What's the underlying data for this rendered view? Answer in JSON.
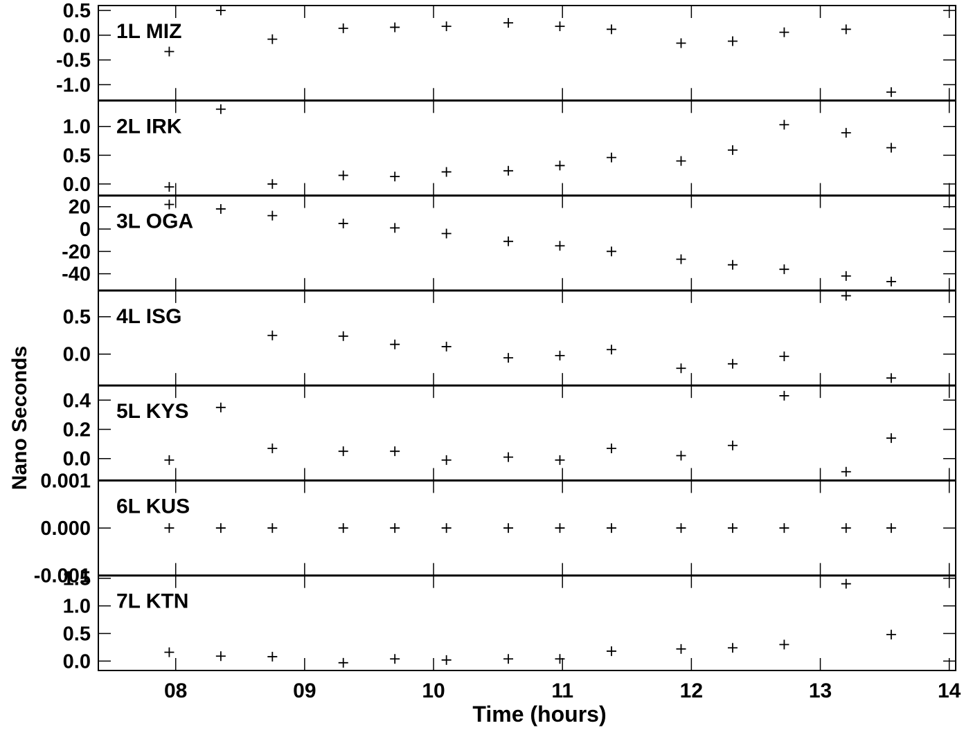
{
  "chart_data": {
    "type": "scatter",
    "xlabel": "Time (hours)",
    "ylabel": "Nano Seconds",
    "xlim": [
      7.4,
      14.05
    ],
    "x_ticks": [
      8,
      9,
      10,
      11,
      12,
      13,
      14
    ],
    "x_tick_labels": [
      "08",
      "09",
      "10",
      "11",
      "12",
      "13",
      "14"
    ],
    "grid": false,
    "panels": [
      {
        "name": "1L MIZ",
        "ylim": [
          -1.32,
          0.6
        ],
        "y_ticks": [
          0.5,
          0.0,
          -0.5,
          -1.0
        ],
        "y_tick_labels": [
          "0.5",
          "0.0",
          "-0.5",
          "-1.0"
        ],
        "x": [
          7.95,
          8.35,
          8.75,
          9.3,
          9.7,
          10.1,
          10.58,
          10.98,
          11.38,
          11.92,
          12.32,
          12.72,
          13.2,
          13.55
        ],
        "y": [
          -0.33,
          0.5,
          -0.08,
          0.14,
          0.16,
          0.18,
          0.25,
          0.18,
          0.12,
          -0.16,
          -0.12,
          0.06,
          0.12,
          -1.15
        ]
      },
      {
        "name": "2L IRK",
        "ylim": [
          -0.2,
          1.45
        ],
        "y_ticks": [
          1.0,
          0.5,
          0.0
        ],
        "y_tick_labels": [
          "1.0",
          "0.5",
          "0.0"
        ],
        "x": [
          7.95,
          8.35,
          8.75,
          9.3,
          9.7,
          10.1,
          10.58,
          10.98,
          11.38,
          11.92,
          12.32,
          12.72,
          13.2,
          13.55
        ],
        "y": [
          -0.05,
          1.3,
          0.0,
          0.15,
          0.13,
          0.21,
          0.23,
          0.32,
          0.46,
          0.4,
          0.59,
          1.03,
          0.89,
          0.63
        ]
      },
      {
        "name": "3L OGA",
        "ylim": [
          -55,
          30
        ],
        "y_ticks": [
          20,
          0,
          -20,
          -40
        ],
        "y_tick_labels": [
          "20",
          "0",
          "-20",
          "-40"
        ],
        "x": [
          7.95,
          8.35,
          8.75,
          9.3,
          9.7,
          10.1,
          10.58,
          10.98,
          11.38,
          11.92,
          12.32,
          12.72,
          13.2,
          13.55
        ],
        "y": [
          22,
          18,
          12,
          5,
          1,
          -4,
          -11,
          -15,
          -20,
          -27,
          -32,
          -36,
          -42,
          -47
        ]
      },
      {
        "name": "4L ISG",
        "ylim": [
          -0.42,
          0.85
        ],
        "y_ticks": [
          0.5,
          0.0
        ],
        "y_tick_labels": [
          "0.5",
          "0.0"
        ],
        "x": [
          8.75,
          9.3,
          9.7,
          10.1,
          10.58,
          10.98,
          11.38,
          11.92,
          12.32,
          12.72,
          13.2,
          13.55
        ],
        "y": [
          0.25,
          0.24,
          0.13,
          0.1,
          -0.05,
          -0.02,
          0.06,
          -0.19,
          -0.13,
          -0.03,
          0.78,
          -0.32
        ]
      },
      {
        "name": "5L KYS",
        "ylim": [
          -0.15,
          0.5
        ],
        "y_ticks": [
          0.4,
          0.2,
          0.0
        ],
        "y_tick_labels": [
          "0.4",
          "0.2",
          "0.0"
        ],
        "x": [
          7.95,
          8.35,
          8.75,
          9.3,
          9.7,
          10.1,
          10.58,
          10.98,
          11.38,
          11.92,
          12.32,
          12.72,
          13.2,
          13.55
        ],
        "y": [
          -0.01,
          0.35,
          0.07,
          0.05,
          0.05,
          -0.01,
          0.01,
          -0.01,
          0.07,
          0.02,
          0.09,
          0.43,
          -0.09,
          0.14
        ]
      },
      {
        "name": "6L KUS",
        "ylim": [
          -0.001,
          0.001
        ],
        "y_ticks": [
          0.001,
          0.0,
          -0.001
        ],
        "y_tick_labels": [
          "0.001",
          "0.000",
          "-0.001"
        ],
        "x": [
          7.95,
          8.35,
          8.75,
          9.3,
          9.7,
          10.1,
          10.58,
          10.98,
          11.38,
          11.92,
          12.32,
          12.72,
          13.2,
          13.55
        ],
        "y": [
          0,
          0,
          0,
          0,
          0,
          0,
          0,
          0,
          0,
          0,
          0,
          0,
          0,
          0
        ]
      },
      {
        "name": "7L KTN",
        "ylim": [
          -0.17,
          1.55
        ],
        "y_ticks": [
          1.5,
          1.0,
          0.5,
          0.0
        ],
        "y_tick_labels": [
          "1.5",
          "1.0",
          "0.5",
          "0.0"
        ],
        "x": [
          7.95,
          8.35,
          8.75,
          9.3,
          9.7,
          10.1,
          10.58,
          10.98,
          11.38,
          11.92,
          12.32,
          12.72,
          13.2,
          13.55
        ],
        "y": [
          0.16,
          0.09,
          0.08,
          -0.03,
          0.04,
          0.02,
          0.04,
          0.04,
          0.18,
          0.22,
          0.24,
          0.3,
          1.4,
          0.48
        ]
      }
    ]
  }
}
